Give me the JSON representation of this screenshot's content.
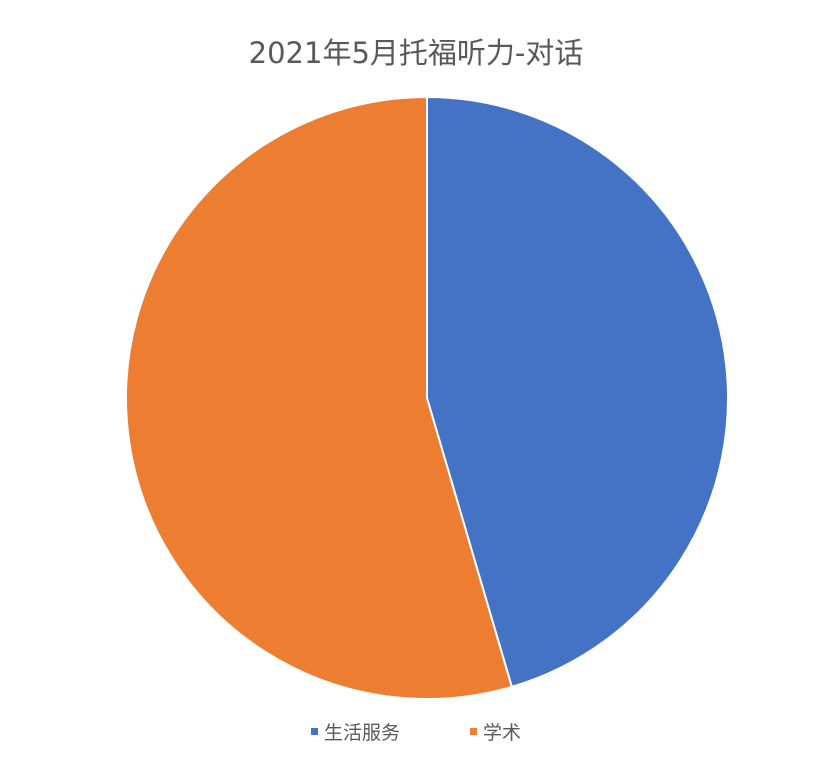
{
  "chart_data": {
    "type": "pie",
    "title": "2021年5月托福听力-对话",
    "categories": [
      "生活服务",
      "学术"
    ],
    "values": [
      5,
      6
    ],
    "colors": [
      "#4472C4",
      "#ED7D31"
    ],
    "start_angle": "12 o'clock, clockwise",
    "legend": "bottom"
  }
}
